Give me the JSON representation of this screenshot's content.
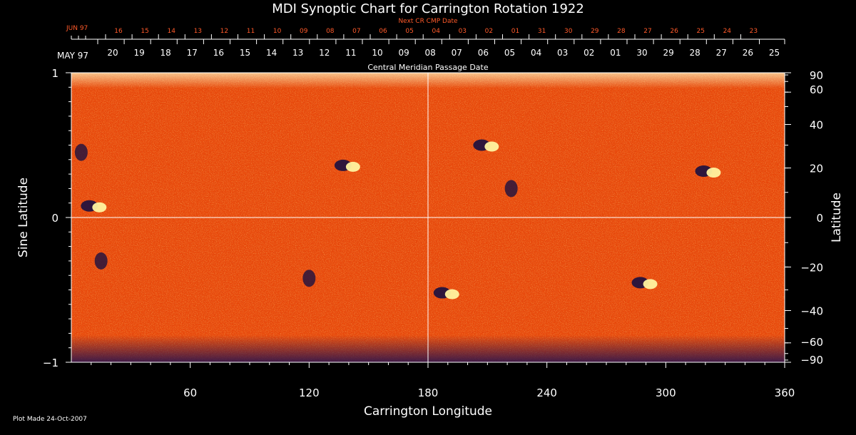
{
  "chart_data": {
    "type": "heatmap",
    "title": "MDI Synoptic Chart for Carrington Rotation 1922",
    "xlabel": "Carrington Longitude",
    "ylabel_left": "Sine Latitude",
    "ylabel_right": "Latitude",
    "xlim": [
      0,
      360
    ],
    "ylim": [
      -1,
      1
    ],
    "x_ticks": [
      60,
      120,
      180,
      240,
      300,
      360
    ],
    "y_ticks_left": [
      {
        "v": 1,
        "label": "1"
      },
      {
        "v": 0,
        "label": "0"
      },
      {
        "v": -1,
        "label": "−1"
      }
    ],
    "latitude_ticks": [
      {
        "deg": 90,
        "label": "90"
      },
      {
        "deg": 60,
        "label": "60"
      },
      {
        "deg": 40,
        "label": "40"
      },
      {
        "deg": 20,
        "label": "20"
      },
      {
        "deg": 0,
        "label": "0"
      },
      {
        "deg": -20,
        "label": "−20"
      },
      {
        "deg": -40,
        "label": "−40"
      },
      {
        "deg": -60,
        "label": "−60"
      },
      {
        "deg": -90,
        "label": "−90"
      }
    ],
    "cmp_axis_label": "Central Meridian Passage Date",
    "cmp_month_label": "MAY 97",
    "cmp_dates": [
      "20",
      "19",
      "18",
      "17",
      "16",
      "15",
      "14",
      "13",
      "12",
      "11",
      "10",
      "09",
      "08",
      "07",
      "06",
      "05",
      "04",
      "03",
      "02",
      "01",
      "30",
      "29",
      "28",
      "27",
      "26",
      "25"
    ],
    "next_cr_label": "Next CR CMP Date",
    "next_cr_month_label": "JUN 97",
    "next_cr_dates": [
      "16",
      "15",
      "14",
      "13",
      "12",
      "11",
      "10",
      "09",
      "08",
      "07",
      "06",
      "05",
      "04",
      "03",
      "02",
      "01",
      "31",
      "30",
      "29",
      "28",
      "27",
      "26",
      "25",
      "24",
      "23"
    ],
    "reference_lines": {
      "x": 180,
      "y": 0
    },
    "active_regions": [
      {
        "lon": 140,
        "sinlat": 0.36,
        "polarity": "bipolar"
      },
      {
        "lon": 12,
        "sinlat": 0.08,
        "polarity": "bipolar"
      },
      {
        "lon": 5,
        "sinlat": 0.45,
        "polarity": "negative"
      },
      {
        "lon": 210,
        "sinlat": 0.5,
        "polarity": "bipolar"
      },
      {
        "lon": 222,
        "sinlat": 0.2,
        "polarity": "negative"
      },
      {
        "lon": 322,
        "sinlat": 0.32,
        "polarity": "bipolar"
      },
      {
        "lon": 190,
        "sinlat": -0.52,
        "polarity": "bipolar"
      },
      {
        "lon": 290,
        "sinlat": -0.45,
        "polarity": "bipolar"
      },
      {
        "lon": 15,
        "sinlat": -0.3,
        "polarity": "negative"
      },
      {
        "lon": 120,
        "sinlat": -0.42,
        "polarity": "negative"
      }
    ],
    "colors": {
      "background": "#000000",
      "field_base": "#e8480a",
      "positive": "#fff4a0",
      "negative": "#1a1040",
      "next_cr_text": "#ff5a2a",
      "axes": "#ffffff"
    }
  },
  "footer": {
    "plot_made": "Plot Made 24-Oct-2007"
  }
}
